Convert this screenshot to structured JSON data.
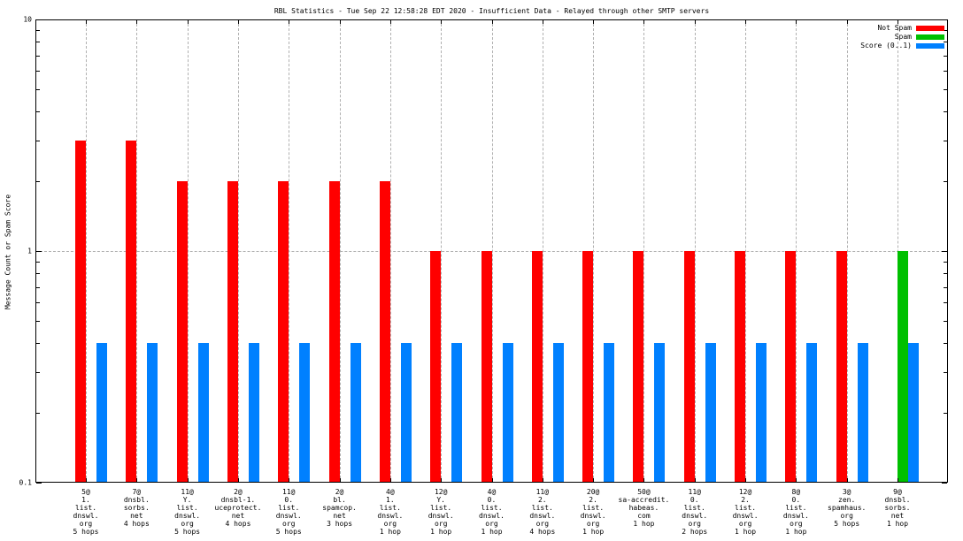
{
  "title": "RBL Statistics - Tue Sep 22 12:58:28 EDT 2020 - Insufficient Data - Relayed through other SMTP servers",
  "ylabel": "Message Count or Spam Score",
  "legend": [
    {
      "label": "Not Spam",
      "color": "#ff0000"
    },
    {
      "label": "Spam",
      "color": "#00c000"
    },
    {
      "label": "Score (0..1)",
      "color": "#0080ff"
    }
  ],
  "chart_data": {
    "type": "bar",
    "scale": "log",
    "ylim": [
      0.1,
      10
    ],
    "ytick_labels": [
      "10",
      "1",
      "0.1"
    ],
    "grid": true,
    "legend_position": "top-right",
    "title": "RBL Statistics - Tue Sep 22 12:58:28 EDT 2020 - Insufficient Data - Relayed through other SMTP servers",
    "xlabel": "",
    "ylabel": "Message Count or Spam Score",
    "categories": [
      [
        "5@",
        "1.",
        "list.",
        "dnswl.",
        "org",
        "5 hops"
      ],
      [
        "7@",
        "dnsbl.",
        "sorbs.",
        "net",
        "4 hops"
      ],
      [
        "11@",
        "Y.",
        "list.",
        "dnswl.",
        "org",
        "5 hops"
      ],
      [
        "2@",
        "dnsbl-1.",
        "uceprotect.",
        "net",
        "4 hops"
      ],
      [
        "11@",
        "0.",
        "list.",
        "dnswl.",
        "org",
        "5 hops"
      ],
      [
        "2@",
        "bl.",
        "spamcop.",
        "net",
        "3 hops"
      ],
      [
        "4@",
        "1.",
        "list.",
        "dnswl.",
        "org",
        "1 hop"
      ],
      [
        "12@",
        "Y.",
        "list.",
        "dnswl.",
        "org",
        "1 hop"
      ],
      [
        "4@",
        "0.",
        "list.",
        "dnswl.",
        "org",
        "1 hop"
      ],
      [
        "11@",
        "2.",
        "list.",
        "dnswl.",
        "org",
        "4 hops"
      ],
      [
        "20@",
        "2.",
        "list.",
        "dnswl.",
        "org",
        "1 hop"
      ],
      [
        "50@",
        "sa-accredit.",
        "habeas.",
        "com",
        "1 hop"
      ],
      [
        "11@",
        "0.",
        "list.",
        "dnswl.",
        "org",
        "2 hops"
      ],
      [
        "12@",
        "2.",
        "list.",
        "dnswl.",
        "org",
        "1 hop"
      ],
      [
        "8@",
        "0.",
        "list.",
        "dnswl.",
        "org",
        "1 hop"
      ],
      [
        "3@",
        "zen.",
        "spamhaus.",
        "org",
        "5 hops"
      ],
      [
        "9@",
        "dnsbl.",
        "sorbs.",
        "net",
        "1 hop"
      ]
    ],
    "series": [
      {
        "name": "Not Spam",
        "color": "#ff0000",
        "values": [
          3,
          3,
          2,
          2,
          2,
          2,
          2,
          1,
          1,
          1,
          1,
          1,
          1,
          1,
          1,
          1,
          0
        ]
      },
      {
        "name": "Spam",
        "color": "#00c000",
        "values": [
          0,
          0,
          0,
          0,
          0,
          0,
          0,
          0,
          0,
          0,
          0,
          0,
          0,
          0,
          0,
          0,
          1
        ]
      },
      {
        "name": "Score (0..1)",
        "color": "#0080ff",
        "values": [
          0.4,
          0.4,
          0.4,
          0.4,
          0.4,
          0.4,
          0.4,
          0.4,
          0.4,
          0.4,
          0.4,
          0.4,
          0.4,
          0.4,
          0.4,
          0.4,
          0.4
        ]
      }
    ]
  }
}
